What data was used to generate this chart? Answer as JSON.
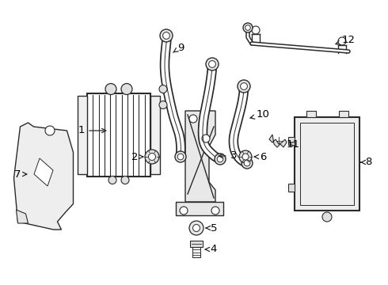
{
  "background": "#ffffff",
  "line_color": "#2a2a2a",
  "label_color": "#000000",
  "fig_w": 4.9,
  "fig_h": 3.6,
  "dpi": 100
}
